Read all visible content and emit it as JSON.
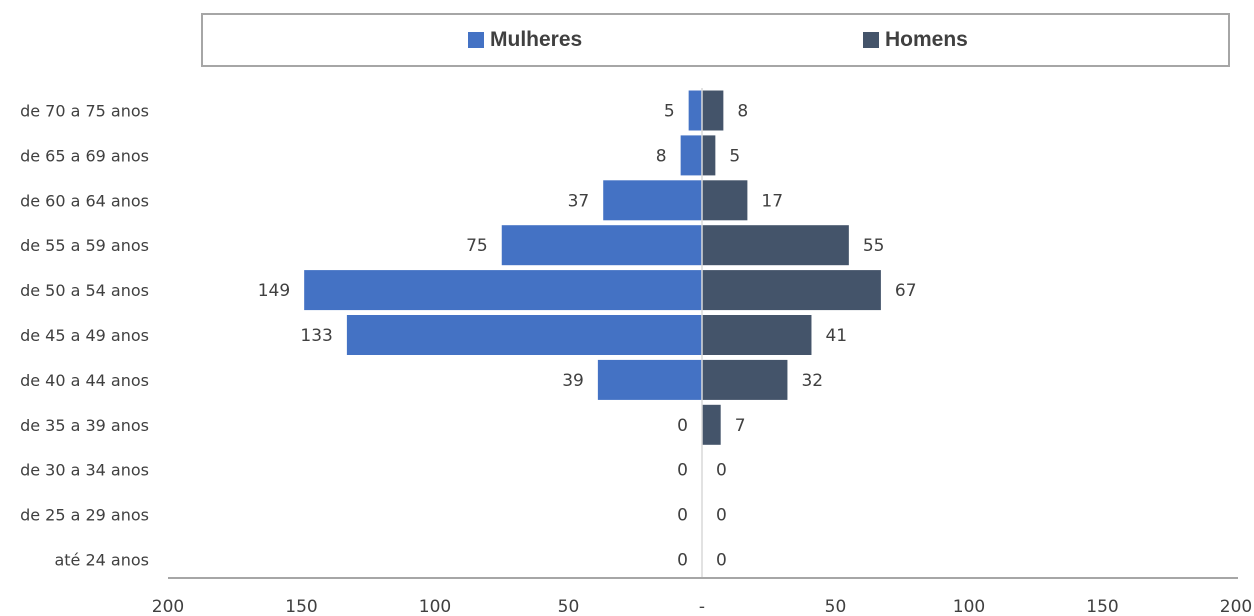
{
  "chart_data": {
    "type": "bar",
    "orientation": "horizontal",
    "layout": "population-pyramid",
    "categories": [
      "de 70 a 75 anos",
      "de 65 a 69 anos",
      "de 60 a 64 anos",
      "de 55 a 59 anos",
      "de 50 a 54 anos",
      "de 45 a 49 anos",
      "de 40 a 44 anos",
      "de 35 a 39 anos",
      "de 30 a 34 anos",
      "de 25 a 29 anos",
      "até 24 anos"
    ],
    "series": [
      {
        "name": "Mulheres",
        "side": "left",
        "color": "#4472c4",
        "values": [
          5,
          8,
          37,
          75,
          149,
          133,
          39,
          0,
          0,
          0,
          0
        ]
      },
      {
        "name": "Homens",
        "side": "right",
        "color": "#44546a",
        "values": [
          8,
          5,
          17,
          55,
          67,
          41,
          32,
          7,
          0,
          0,
          0
        ]
      }
    ],
    "x_ticks": [
      "200",
      "150",
      "100",
      "50",
      "-",
      "50",
      "100",
      "150",
      "200"
    ],
    "xlim": [
      -200,
      200
    ],
    "legend_position": "top",
    "grid": false,
    "title": "",
    "xlabel": "",
    "ylabel": ""
  }
}
